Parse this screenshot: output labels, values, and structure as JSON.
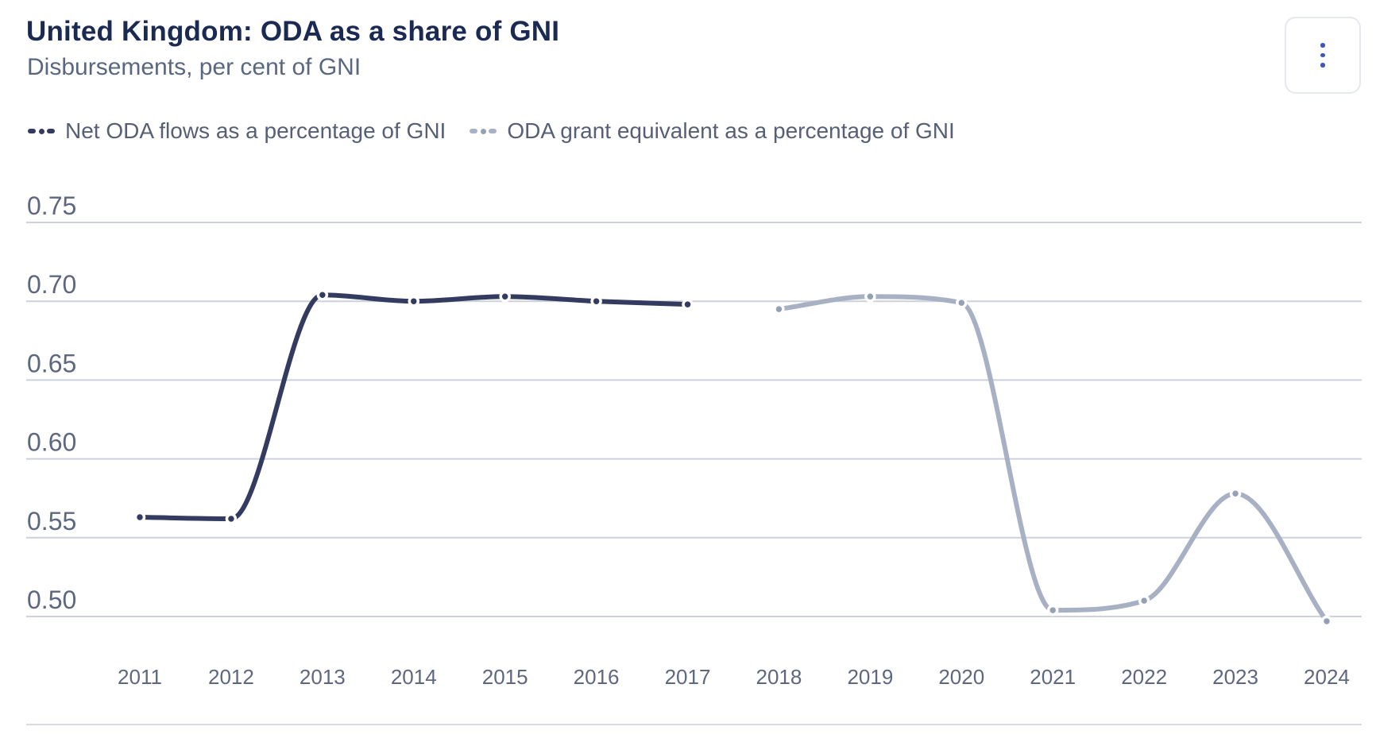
{
  "menu": {
    "icon": "kebab-vertical"
  },
  "colors": {
    "title": "#1b2a52",
    "subtitle": "#5a6780",
    "legend_text": "#565f75",
    "axis_label": "#5d6780",
    "gridline": "#ccd1dc",
    "menu_dots": "#4355bd",
    "menu_border": "#e5e8ee",
    "divider": "#d9dce3"
  },
  "chart_data": {
    "type": "line",
    "title": "United Kingdom: ODA as a share of GNI",
    "subtitle": "Disbursements, per cent of GNI",
    "x_labels": [
      "2011",
      "2012",
      "2013",
      "2014",
      "2015",
      "2016",
      "2017",
      "2018",
      "2019",
      "2020",
      "2021",
      "2022",
      "2023",
      "2024"
    ],
    "y_tick_labels": [
      "0.75",
      "0.70",
      "0.65",
      "0.60",
      "0.55",
      "0.50"
    ],
    "ylim": [
      0.485,
      0.775
    ],
    "grid": true,
    "legend_position": "top-left",
    "curve": "smooth-monotone",
    "series": [
      {
        "name": "Net ODA flows as a percentage of GNI",
        "color": "#343b60",
        "years": [
          2011,
          2012,
          2013,
          2014,
          2015,
          2016,
          2017
        ],
        "values": [
          0.563,
          0.562,
          0.704,
          0.7,
          0.703,
          0.7,
          0.698
        ]
      },
      {
        "name": "ODA grant equivalent as a percentage of GNI",
        "color": "#a8b1c4",
        "marker_color": "#94a0b6",
        "years": [
          2018,
          2019,
          2020,
          2021,
          2022,
          2023,
          2024
        ],
        "values": [
          0.695,
          0.703,
          0.699,
          0.504,
          0.51,
          0.578,
          0.497
        ]
      }
    ]
  }
}
